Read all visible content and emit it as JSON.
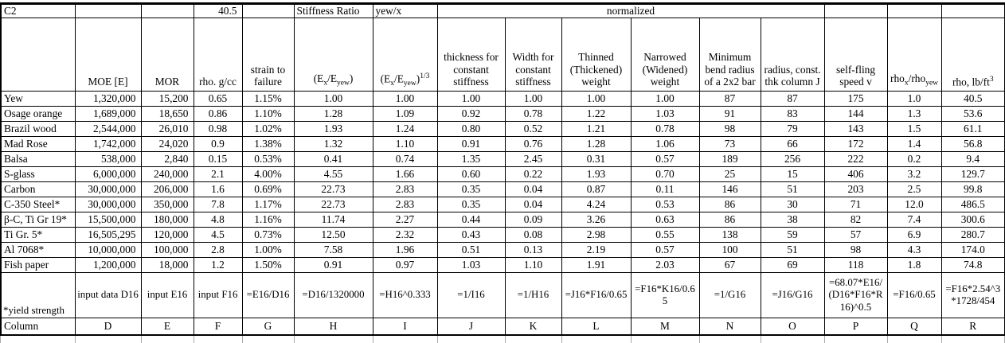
{
  "top_row": {
    "c2": "C2",
    "f_value": "40.5",
    "stiffness_ratio": "Stiffness Ratio",
    "yew_x": "yew/x",
    "normalized": "normalized"
  },
  "columns": [
    {
      "letter": "Column",
      "header": "",
      "formula": "*yield strength"
    },
    {
      "letter": "D",
      "header": "MOE [E]",
      "formula": "input data D16"
    },
    {
      "letter": "E",
      "header": "MOR",
      "formula": "input E16"
    },
    {
      "letter": "F",
      "header": "rho. g/cc",
      "formula": "input F16"
    },
    {
      "letter": "G",
      "header": "strain to failure",
      "formula": "=E16/D16"
    },
    {
      "letter": "H",
      "header": "(E<sub>x</sub>/E<sub>yew</sub>)",
      "formula": "=D16/1320000"
    },
    {
      "letter": "I",
      "header": "(E<sub>x</sub>/E<sub>yew</sub>)<sup>1/3</sup>",
      "formula": "=H16^0.333"
    },
    {
      "letter": "J",
      "header": "thickness for constant stiffness",
      "formula": "=1/I16"
    },
    {
      "letter": "K",
      "header": "Width for constant stiffness",
      "formula": "=1/H16"
    },
    {
      "letter": "L",
      "header": "Thinned (Thickened) weight",
      "formula": "=J16*F16/0.65"
    },
    {
      "letter": "M",
      "header": "Narrowed (Widened) weight",
      "formula": "=F16*K16/0.65"
    },
    {
      "letter": "N",
      "header": "Minimum bend radius of a 2x2 bar",
      "formula": "=1/G16"
    },
    {
      "letter": "O",
      "header": "radius, const. thk column J",
      "formula": "=J16/G16"
    },
    {
      "letter": "P",
      "header": "self-fling speed v",
      "formula": "=68.07*E16/(D16*F16*R16)^0.5"
    },
    {
      "letter": "Q",
      "header": "rho<sub>x</sub>/rho<sub>yew</sub>",
      "formula": "=F16/0.65"
    },
    {
      "letter": "R",
      "header": "rho, lb/ft<sup>3</sup>",
      "formula": "=F16*2.54^3*1728/454"
    }
  ],
  "rows": [
    {
      "name": "Yew",
      "values": [
        "1,320,000",
        "15,200",
        "0.65",
        "1.15%",
        "1.00",
        "1.00",
        "1.00",
        "1.00",
        "1.00",
        "1.00",
        "87",
        "87",
        "175",
        "1.0",
        "40.5"
      ]
    },
    {
      "name": "Osage orange",
      "values": [
        "1,689,000",
        "18,650",
        "0.86",
        "1.10%",
        "1.28",
        "1.09",
        "0.92",
        "0.78",
        "1.22",
        "1.03",
        "91",
        "83",
        "144",
        "1.3",
        "53.6"
      ]
    },
    {
      "name": "Brazil wood",
      "values": [
        "2,544,000",
        "26,010",
        "0.98",
        "1.02%",
        "1.93",
        "1.24",
        "0.80",
        "0.52",
        "1.21",
        "0.78",
        "98",
        "79",
        "143",
        "1.5",
        "61.1"
      ]
    },
    {
      "name": "Mad Rose",
      "values": [
        "1,742,000",
        "24,020",
        "0.9",
        "1.38%",
        "1.32",
        "1.10",
        "0.91",
        "0.76",
        "1.28",
        "1.06",
        "73",
        "66",
        "172",
        "1.4",
        "56.8"
      ]
    },
    {
      "name": "Balsa",
      "values": [
        "538,000",
        "2,840",
        "0.15",
        "0.53%",
        "0.41",
        "0.74",
        "1.35",
        "2.45",
        "0.31",
        "0.57",
        "189",
        "256",
        "222",
        "0.2",
        "9.4"
      ]
    },
    {
      "name": "S-glass",
      "values": [
        "6,000,000",
        "240,000",
        "2.1",
        "4.00%",
        "4.55",
        "1.66",
        "0.60",
        "0.22",
        "1.93",
        "0.70",
        "25",
        "15",
        "406",
        "3.2",
        "129.7"
      ]
    },
    {
      "name": "Carbon",
      "values": [
        "30,000,000",
        "206,000",
        "1.6",
        "0.69%",
        "22.73",
        "2.83",
        "0.35",
        "0.04",
        "0.87",
        "0.11",
        "146",
        "51",
        "203",
        "2.5",
        "99.8"
      ]
    },
    {
      "name": "C-350 Steel*",
      "values": [
        "30,000,000",
        "350,000",
        "7.8",
        "1.17%",
        "22.73",
        "2.83",
        "0.35",
        "0.04",
        "4.24",
        "0.53",
        "86",
        "30",
        "71",
        "12.0",
        "486.5"
      ]
    },
    {
      "name": "β-C, Ti Gr 19*",
      "values": [
        "15,500,000",
        "180,000",
        "4.8",
        "1.16%",
        "11.74",
        "2.27",
        "0.44",
        "0.09",
        "3.26",
        "0.63",
        "86",
        "38",
        "82",
        "7.4",
        "300.6"
      ]
    },
    {
      "name": "Ti Gr. 5*",
      "values": [
        "16,505,295",
        "120,000",
        "4.5",
        "0.73%",
        "12.50",
        "2.32",
        "0.43",
        "0.08",
        "2.98",
        "0.55",
        "138",
        "59",
        "57",
        "6.9",
        "280.7"
      ]
    },
    {
      "name": "Al 7068*",
      "values": [
        "10,000,000",
        "100,000",
        "2.8",
        "1.00%",
        "7.58",
        "1.96",
        "0.51",
        "0.13",
        "2.19",
        "0.57",
        "100",
        "51",
        "98",
        "4.3",
        "174.0"
      ]
    },
    {
      "name": "Fish paper",
      "values": [
        "1,200,000",
        "18,000",
        "1.2",
        "1.50%",
        "0.91",
        "0.97",
        "1.03",
        "1.10",
        "1.91",
        "2.03",
        "67",
        "69",
        "118",
        "1.8",
        "74.8"
      ]
    }
  ]
}
